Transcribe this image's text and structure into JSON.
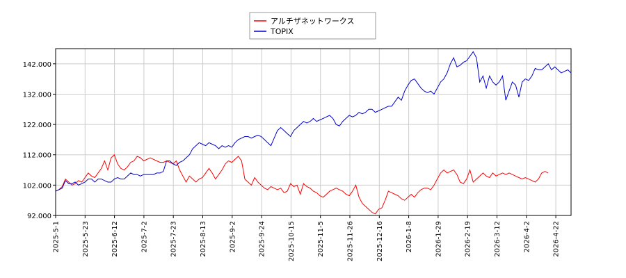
{
  "chart_data": {
    "type": "line",
    "legend_position": "top-center",
    "grid": true,
    "ylim": [
      92,
      147
    ],
    "y_ticks": [
      "92.000",
      "102.000",
      "112.000",
      "122.000",
      "132.000",
      "142.000"
    ],
    "x_ticks": [
      "2025-5-1",
      "2025-5-23",
      "2025-6-12",
      "2025-7-2",
      "2025-7-23",
      "2025-8-13",
      "2025-9-2",
      "2025-9-24",
      "2025-10-15",
      "2025-11-5",
      "2025-11-26",
      "2025-12-16",
      "2026-1-8",
      "2026-1-29",
      "2026-2-19",
      "2026-3-12",
      "2026-4-2",
      "2026-4-22"
    ],
    "series": [
      {
        "name": "アルチザネットワークス",
        "color": "#ff0000",
        "points": [
          [
            0,
            100
          ],
          [
            1,
            100.5
          ],
          [
            2,
            101.5
          ],
          [
            3,
            104
          ],
          [
            4,
            103
          ],
          [
            5,
            102
          ],
          [
            6,
            102.5
          ],
          [
            7,
            103.5
          ],
          [
            8,
            103
          ],
          [
            9,
            104.5
          ],
          [
            10,
            106
          ],
          [
            11,
            105
          ],
          [
            12,
            104.5
          ],
          [
            13,
            106
          ],
          [
            14,
            107.5
          ],
          [
            15,
            110
          ],
          [
            16,
            107
          ],
          [
            17,
            111
          ],
          [
            18,
            112
          ],
          [
            19,
            109
          ],
          [
            20,
            107.5
          ],
          [
            21,
            107
          ],
          [
            22,
            108
          ],
          [
            23,
            109.5
          ],
          [
            24,
            110
          ],
          [
            25,
            111.5
          ],
          [
            26,
            111
          ],
          [
            27,
            110
          ],
          [
            28,
            110.5
          ],
          [
            29,
            111
          ],
          [
            30,
            110.5
          ],
          [
            31,
            110
          ],
          [
            32,
            109.5
          ],
          [
            33,
            109.5
          ],
          [
            34,
            110
          ],
          [
            35,
            109.5
          ],
          [
            36,
            109
          ],
          [
            37,
            110
          ],
          [
            38,
            107
          ],
          [
            39,
            105
          ],
          [
            40,
            103
          ],
          [
            41,
            105
          ],
          [
            42,
            104
          ],
          [
            43,
            103
          ],
          [
            44,
            104
          ],
          [
            45,
            104.5
          ],
          [
            46,
            106
          ],
          [
            47,
            107.5
          ],
          [
            48,
            106
          ],
          [
            49,
            104
          ],
          [
            50,
            105.5
          ],
          [
            51,
            107
          ],
          [
            52,
            109
          ],
          [
            53,
            110
          ],
          [
            54,
            109.5
          ],
          [
            55,
            110.5
          ],
          [
            56,
            111.5
          ],
          [
            57,
            110
          ],
          [
            58,
            104
          ],
          [
            59,
            103
          ],
          [
            60,
            102
          ],
          [
            61,
            104.5
          ],
          [
            62,
            103
          ],
          [
            63,
            102
          ],
          [
            64,
            101
          ],
          [
            65,
            100.5
          ],
          [
            66,
            101.5
          ],
          [
            67,
            101
          ],
          [
            68,
            100.5
          ],
          [
            69,
            101
          ],
          [
            70,
            99.5
          ],
          [
            71,
            100
          ],
          [
            72,
            102.5
          ],
          [
            73,
            101.5
          ],
          [
            74,
            102
          ],
          [
            75,
            99
          ],
          [
            76,
            102.5
          ],
          [
            77,
            101.5
          ],
          [
            78,
            101
          ],
          [
            79,
            100
          ],
          [
            80,
            99.5
          ],
          [
            81,
            98.5
          ],
          [
            82,
            98
          ],
          [
            83,
            99
          ],
          [
            84,
            100
          ],
          [
            85,
            100.5
          ],
          [
            86,
            101
          ],
          [
            87,
            100.5
          ],
          [
            88,
            100
          ],
          [
            89,
            99
          ],
          [
            90,
            98.5
          ],
          [
            91,
            100
          ],
          [
            92,
            102
          ],
          [
            93,
            98
          ],
          [
            94,
            96
          ],
          [
            95,
            95
          ],
          [
            96,
            94
          ],
          [
            97,
            93
          ],
          [
            98,
            92.5
          ],
          [
            99,
            94
          ],
          [
            100,
            94.5
          ],
          [
            101,
            97
          ],
          [
            102,
            100
          ],
          [
            103,
            99.5
          ],
          [
            104,
            99
          ],
          [
            105,
            98.5
          ],
          [
            106,
            97.5
          ],
          [
            107,
            97
          ],
          [
            108,
            98
          ],
          [
            109,
            99
          ],
          [
            110,
            98
          ],
          [
            111,
            99.5
          ],
          [
            112,
            100.5
          ],
          [
            113,
            101
          ],
          [
            114,
            101
          ],
          [
            115,
            100.5
          ],
          [
            116,
            102
          ],
          [
            117,
            104
          ],
          [
            118,
            106
          ],
          [
            119,
            107
          ],
          [
            120,
            106
          ],
          [
            121,
            106.5
          ],
          [
            122,
            107
          ],
          [
            123,
            105.5
          ],
          [
            124,
            103
          ],
          [
            125,
            102.5
          ],
          [
            126,
            104
          ],
          [
            127,
            107
          ],
          [
            128,
            103
          ],
          [
            129,
            104
          ],
          [
            130,
            105
          ],
          [
            131,
            106
          ],
          [
            132,
            105
          ],
          [
            133,
            104.5
          ],
          [
            134,
            106
          ],
          [
            135,
            105
          ],
          [
            136,
            105.5
          ],
          [
            137,
            106
          ],
          [
            138,
            105.5
          ],
          [
            139,
            106
          ],
          [
            140,
            105.5
          ],
          [
            141,
            105
          ],
          [
            142,
            104.5
          ],
          [
            143,
            104
          ],
          [
            144,
            104.5
          ],
          [
            145,
            104
          ],
          [
            146,
            103.5
          ],
          [
            147,
            103
          ],
          [
            148,
            104
          ],
          [
            149,
            106
          ],
          [
            150,
            106.5
          ],
          [
            151,
            106
          ]
        ]
      },
      {
        "name": "TOPIX",
        "color": "#0000cc",
        "points": [
          [
            0,
            100
          ],
          [
            1,
            100.5
          ],
          [
            2,
            101
          ],
          [
            3,
            103.5
          ],
          [
            4,
            102.5
          ],
          [
            5,
            102.5
          ],
          [
            6,
            103
          ],
          [
            7,
            102
          ],
          [
            8,
            102.5
          ],
          [
            9,
            103
          ],
          [
            10,
            104
          ],
          [
            11,
            104
          ],
          [
            12,
            103
          ],
          [
            13,
            104
          ],
          [
            14,
            104
          ],
          [
            15,
            103.5
          ],
          [
            16,
            103
          ],
          [
            17,
            103
          ],
          [
            18,
            104
          ],
          [
            19,
            104.5
          ],
          [
            20,
            104
          ],
          [
            21,
            104
          ],
          [
            22,
            105
          ],
          [
            23,
            106
          ],
          [
            24,
            105.5
          ],
          [
            25,
            105.5
          ],
          [
            26,
            105
          ],
          [
            27,
            105.5
          ],
          [
            28,
            105.5
          ],
          [
            29,
            105.5
          ],
          [
            30,
            105.5
          ],
          [
            31,
            106
          ],
          [
            32,
            106
          ],
          [
            33,
            106.5
          ],
          [
            34,
            110
          ],
          [
            35,
            110
          ],
          [
            36,
            109
          ],
          [
            37,
            108.5
          ],
          [
            38,
            109.5
          ],
          [
            39,
            110
          ],
          [
            40,
            111
          ],
          [
            41,
            112
          ],
          [
            42,
            114
          ],
          [
            43,
            115
          ],
          [
            44,
            116
          ],
          [
            45,
            115.5
          ],
          [
            46,
            115
          ],
          [
            47,
            116
          ],
          [
            48,
            115.5
          ],
          [
            49,
            115
          ],
          [
            50,
            114
          ],
          [
            51,
            115
          ],
          [
            52,
            114.5
          ],
          [
            53,
            115
          ],
          [
            54,
            114.5
          ],
          [
            55,
            116
          ],
          [
            56,
            117
          ],
          [
            57,
            117.5
          ],
          [
            58,
            118
          ],
          [
            59,
            118
          ],
          [
            60,
            117.5
          ],
          [
            61,
            118
          ],
          [
            62,
            118.5
          ],
          [
            63,
            118
          ],
          [
            64,
            117
          ],
          [
            65,
            116
          ],
          [
            66,
            115
          ],
          [
            67,
            117.5
          ],
          [
            68,
            120
          ],
          [
            69,
            121
          ],
          [
            70,
            120
          ],
          [
            71,
            119
          ],
          [
            72,
            118
          ],
          [
            73,
            120
          ],
          [
            74,
            121
          ],
          [
            75,
            122
          ],
          [
            76,
            123
          ],
          [
            77,
            122.5
          ],
          [
            78,
            123
          ],
          [
            79,
            124
          ],
          [
            80,
            123
          ],
          [
            81,
            123.5
          ],
          [
            82,
            124
          ],
          [
            83,
            124.5
          ],
          [
            84,
            125
          ],
          [
            85,
            124
          ],
          [
            86,
            122
          ],
          [
            87,
            121.5
          ],
          [
            88,
            123
          ],
          [
            89,
            124
          ],
          [
            90,
            125
          ],
          [
            91,
            124.5
          ],
          [
            92,
            125
          ],
          [
            93,
            126
          ],
          [
            94,
            125.5
          ],
          [
            95,
            126
          ],
          [
            96,
            127
          ],
          [
            97,
            127
          ],
          [
            98,
            126
          ],
          [
            99,
            126.5
          ],
          [
            100,
            127
          ],
          [
            101,
            127.5
          ],
          [
            102,
            128
          ],
          [
            103,
            128
          ],
          [
            104,
            129.5
          ],
          [
            105,
            131
          ],
          [
            106,
            130
          ],
          [
            107,
            133
          ],
          [
            108,
            135
          ],
          [
            109,
            136.5
          ],
          [
            110,
            137
          ],
          [
            111,
            135.5
          ],
          [
            112,
            134
          ],
          [
            113,
            133
          ],
          [
            114,
            132.5
          ],
          [
            115,
            133
          ],
          [
            116,
            132
          ],
          [
            117,
            134
          ],
          [
            118,
            136
          ],
          [
            119,
            137
          ],
          [
            120,
            139
          ],
          [
            121,
            142
          ],
          [
            122,
            144
          ],
          [
            123,
            141
          ],
          [
            124,
            141.5
          ],
          [
            125,
            142.5
          ],
          [
            126,
            143
          ],
          [
            127,
            144.5
          ],
          [
            128,
            146
          ],
          [
            129,
            144
          ],
          [
            130,
            136
          ],
          [
            131,
            138
          ],
          [
            132,
            134
          ],
          [
            133,
            138
          ],
          [
            134,
            136
          ],
          [
            135,
            135
          ],
          [
            136,
            136
          ],
          [
            137,
            138
          ],
          [
            138,
            130
          ],
          [
            139,
            133
          ],
          [
            140,
            136
          ],
          [
            141,
            135
          ],
          [
            142,
            131
          ],
          [
            143,
            136
          ],
          [
            144,
            137
          ],
          [
            145,
            136.5
          ],
          [
            146,
            138
          ],
          [
            147,
            140.5
          ],
          [
            148,
            140
          ],
          [
            149,
            140
          ],
          [
            150,
            141
          ],
          [
            151,
            142
          ],
          [
            152,
            140
          ],
          [
            153,
            141
          ],
          [
            154,
            140
          ],
          [
            155,
            139
          ],
          [
            156,
            139.5
          ],
          [
            157,
            140
          ],
          [
            158,
            139
          ]
        ]
      }
    ]
  }
}
